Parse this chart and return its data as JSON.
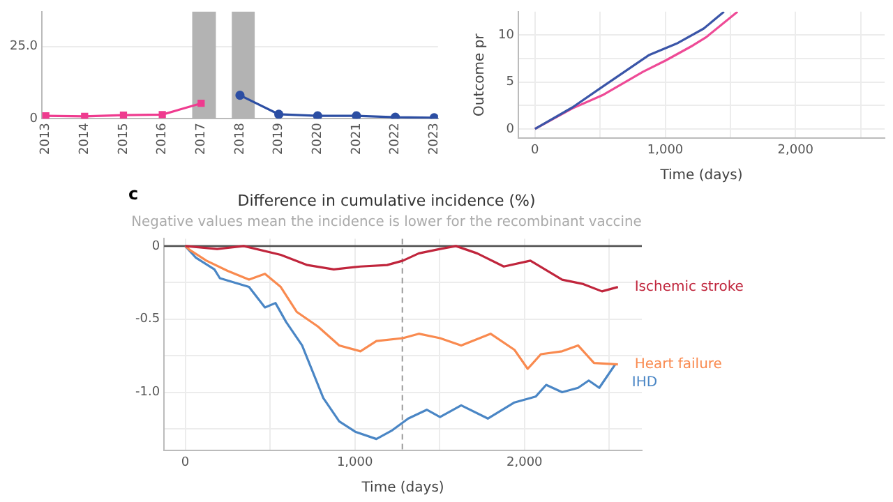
{
  "chart_data": [
    {
      "type": "line",
      "grid": "y",
      "xlim": [
        2012.9,
        2023.1
      ],
      "xticks": [
        2013,
        2014,
        2015,
        2016,
        2017,
        2018,
        2019,
        2020,
        2021,
        2022,
        2023
      ],
      "ylim": [
        0,
        37
      ],
      "yticks": [
        0,
        {
          "value": 25,
          "label": "25.0"
        }
      ],
      "bands": [
        {
          "axis": "x",
          "from": 2016.77,
          "to": 2017.38,
          "color": "#b3b3b3"
        },
        {
          "axis": "x",
          "from": 2017.79,
          "to": 2018.38,
          "color": "#b3b3b3"
        }
      ],
      "series": [
        {
          "color": "#ef3b8f",
          "marker": "square",
          "x": [
            2013,
            2014,
            2015,
            2016,
            2017
          ],
          "values": [
            1.0,
            0.8,
            1.2,
            1.4,
            5.3
          ]
        },
        {
          "color": "#2c4ea3",
          "marker": "circle",
          "x": [
            2018,
            2019,
            2020,
            2021,
            2022,
            2023
          ],
          "values": [
            8.1,
            1.5,
            1.0,
            1.0,
            0.5,
            0.3
          ]
        }
      ]
    },
    {
      "type": "line",
      "marker": "none",
      "grid": true,
      "xlabel": "Time (days)",
      "ylabel": "Outcome pr",
      "xlim": [
        -128,
        2684
      ],
      "xticks": [
        0,
        {
          "value": 500,
          "label": null
        },
        {
          "value": 1000,
          "label": "1,000"
        },
        {
          "value": 1500,
          "label": null
        },
        {
          "value": 2000,
          "label": "2,000"
        },
        {
          "value": 2500,
          "label": null
        }
      ],
      "ylim": [
        -1,
        12.5
      ],
      "yticks": [
        0,
        {
          "value": 2.5,
          "label": null
        },
        5,
        {
          "value": 7.5,
          "label": null
        },
        10
      ],
      "series": [
        {
          "color": "#3a55a8",
          "x": [
            0,
            288,
            497,
            878,
            1087,
            1295,
            1451
          ],
          "values": [
            0,
            2.3,
            4.3,
            7.9,
            9.1,
            10.7,
            12.5
          ]
        },
        {
          "color": "#ee4a96",
          "x": [
            0,
            288,
            518,
            830,
            1003,
            1212,
            1316,
            1555
          ],
          "values": [
            0,
            2.2,
            3.6,
            6.1,
            7.3,
            8.9,
            9.8,
            12.5
          ]
        }
      ]
    },
    {
      "type": "line",
      "marker": "none",
      "grid": true,
      "title": "Difference in cumulative incidence (%)",
      "subtitle": "Negative values mean the incidence is lower for the recombinant vaccine",
      "xlabel": "Time (days)",
      "annotations": [
        "c"
      ],
      "xlim": [
        -125,
        2692
      ],
      "xticks": [
        0,
        {
          "value": 500,
          "label": null
        },
        {
          "value": 1000,
          "label": "1,000"
        },
        {
          "value": 1500,
          "label": null
        },
        {
          "value": 2000,
          "label": "2,000"
        },
        {
          "value": 2500,
          "label": null
        }
      ],
      "ylim": [
        -1.4,
        0.05
      ],
      "yticks": [
        0,
        {
          "value": -0.25,
          "label": null
        },
        -0.5,
        {
          "value": -0.75,
          "label": null
        },
        {
          "value": -1.0,
          "label": "-1.0"
        },
        {
          "value": -1.25,
          "label": null
        }
      ],
      "ref_lines": [
        {
          "axis": "y",
          "value": 0,
          "color": "#555555",
          "line_style": "solid"
        },
        {
          "axis": "x",
          "value": 1280,
          "color": "#999999",
          "line_style": "dashed"
        }
      ],
      "series": [
        {
          "name": "Ischemic stroke",
          "color": "#c0253c",
          "x": [
            0,
            188,
            345,
            563,
            720,
            876,
            1033,
            1190,
            1283,
            1377,
            1502,
            1596,
            1721,
            1878,
            2035,
            2222,
            2347,
            2457,
            2551
          ],
          "values": [
            0,
            -0.02,
            0,
            -0.06,
            -0.13,
            -0.16,
            -0.14,
            -0.13,
            -0.1,
            -0.05,
            -0.02,
            0,
            -0.05,
            -0.14,
            -0.1,
            -0.23,
            -0.26,
            -0.31,
            -0.28
          ]
        },
        {
          "name": "Heart failure",
          "color": "#f98a4f",
          "x": [
            0,
            31,
            125,
            250,
            376,
            470,
            563,
            657,
            782,
            908,
            1033,
            1127,
            1283,
            1377,
            1502,
            1627,
            1800,
            1941,
            2019,
            2097,
            2222,
            2316,
            2410,
            2551
          ],
          "values": [
            0,
            -0.03,
            -0.1,
            -0.17,
            -0.23,
            -0.19,
            -0.28,
            -0.45,
            -0.55,
            -0.68,
            -0.72,
            -0.65,
            -0.63,
            -0.6,
            -0.63,
            -0.68,
            -0.6,
            -0.71,
            -0.84,
            -0.74,
            -0.72,
            -0.68,
            -0.8,
            -0.81
          ]
        },
        {
          "name": "IHD",
          "color": "#4a86c5",
          "x": [
            0,
            63,
            172,
            204,
            376,
            470,
            532,
            595,
            689,
            814,
            908,
            1002,
            1127,
            1221,
            1315,
            1424,
            1502,
            1627,
            1784,
            1941,
            2066,
            2128,
            2222,
            2316,
            2379,
            2441,
            2535
          ],
          "values": [
            0,
            -0.08,
            -0.16,
            -0.22,
            -0.28,
            -0.42,
            -0.39,
            -0.52,
            -0.68,
            -1.04,
            -1.2,
            -1.27,
            -1.32,
            -1.26,
            -1.18,
            -1.12,
            -1.17,
            -1.09,
            -1.18,
            -1.07,
            -1.03,
            -0.95,
            -1.0,
            -0.97,
            -0.92,
            -0.97,
            -0.81
          ]
        }
      ]
    }
  ]
}
